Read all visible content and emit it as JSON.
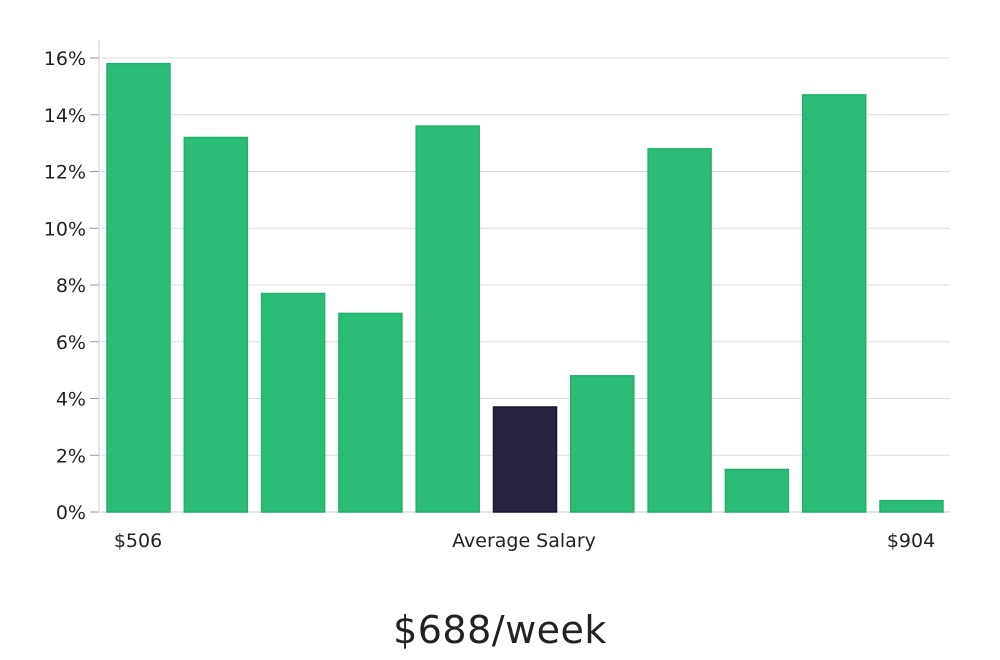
{
  "chart_data": {
    "type": "bar",
    "values": [
      15.8,
      13.2,
      7.7,
      7.0,
      13.6,
      3.7,
      4.8,
      12.8,
      1.5,
      14.7,
      0.4
    ],
    "highlight_index": 5,
    "ylim": [
      0,
      16
    ],
    "y_ticks": [
      0,
      2,
      4,
      6,
      8,
      10,
      12,
      14,
      16
    ],
    "y_tick_labels": [
      "0%",
      "2%",
      "4%",
      "6%",
      "8%",
      "10%",
      "12%",
      "14%",
      "16%"
    ],
    "x_labels": {
      "left": "$506",
      "center": "Average Salary",
      "right": "$904"
    },
    "grid": true,
    "colors": {
      "bar": "#2bbd78",
      "highlight": "#29243f",
      "grid": "#dddddd",
      "axis": "#cccccc"
    }
  },
  "headline": "$688/week"
}
